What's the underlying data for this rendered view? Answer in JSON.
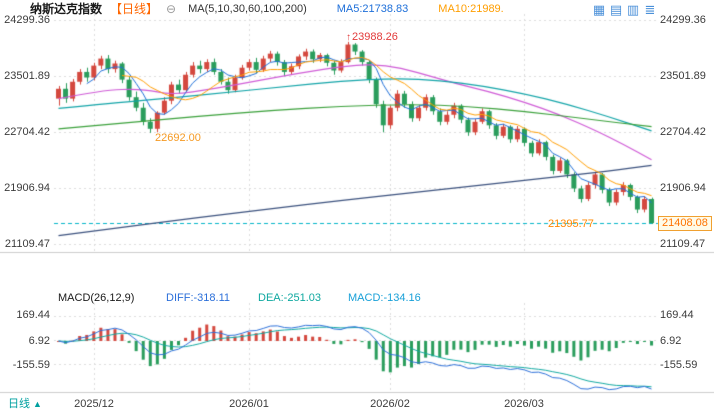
{
  "header": {
    "title": "纳斯达克指数",
    "period_tag": "【日线】",
    "ma_group_label": "MA(5,10,30,60,100,200)",
    "ma5_label": "MA5:21738.83",
    "ma10_label": "MA10:21989."
  },
  "icons": {
    "collapse": "⊖",
    "arrow_up": "↑",
    "tab_arrow": "▲",
    "toolbar": [
      {
        "name": "multi-chart-grid",
        "glyph": "▦"
      },
      {
        "name": "split-rows",
        "glyph": "▤"
      },
      {
        "name": "split-columns",
        "glyph": "▥"
      },
      {
        "name": "list-layout",
        "glyph": "≣"
      }
    ]
  },
  "price_axis": {
    "labels": [
      "24299.36",
      "23501.89",
      "22704.42",
      "21906.94",
      "21109.47"
    ]
  },
  "current_price_tag": "21408.08",
  "annotations": {
    "high": "23988.26",
    "period_low": "22692.00",
    "session_low": "21395.77"
  },
  "macd_header": {
    "label": "MACD(26,12,9)",
    "diff": "DIFF:-318.11",
    "dea": "DEA:-251.03",
    "macd": "MACD:-134.16"
  },
  "macd_axis": {
    "labels": [
      "169.44",
      "6.92",
      "-155.59"
    ]
  },
  "time_axis": {
    "labels": [
      "2025/12",
      "2026/01",
      "2026/02",
      "2026/03"
    ]
  },
  "bottom_tab": {
    "label": "日线"
  },
  "chart_data": {
    "type": "candlestick+macd",
    "title": "纳斯达克指数 日线",
    "y_axis_ticks": [
      24299.36,
      23501.89,
      22704.42,
      21906.94,
      21109.47
    ],
    "current_price": 21408.08,
    "marked_high": 23988.26,
    "marked_period_low": 22692.0,
    "marked_session_low": 21395.77,
    "ma_displayed": {
      "MA5": 21738.83,
      "MA10": 21989
    },
    "macd_values": {
      "diff": -318.11,
      "dea": -251.03,
      "macd": -134.16
    },
    "macd_axis_ticks": [
      169.44,
      6.92,
      -155.59
    ],
    "months": [
      {
        "label": "2025/12",
        "index": 5
      },
      {
        "label": "2026/01",
        "index": 27
      },
      {
        "label": "2026/02",
        "index": 47
      },
      {
        "label": "2026/03",
        "index": 66
      }
    ],
    "colors": {
      "up": "#d4483e",
      "down": "#2a9d5c",
      "ma5": "#1e6fd9",
      "ma10": "#ff9e00",
      "diff": "#2b6fd9",
      "dea": "#0fa8a0",
      "hist_pos": "#d4483e",
      "hist_neg": "#2a9d5c",
      "dashed": "#00b4c8",
      "grid": "#dcdcdc",
      "separator": "#cccccc"
    },
    "ma_long_lines": [
      {
        "name": "MA30",
        "color": "#cf5bd6",
        "points": [
          [
            0,
            23180
          ],
          [
            6,
            23300
          ],
          [
            12,
            23320
          ],
          [
            16,
            23230
          ],
          [
            22,
            23320
          ],
          [
            28,
            23430
          ],
          [
            34,
            23540
          ],
          [
            41,
            23650
          ],
          [
            46,
            23670
          ],
          [
            51,
            23550
          ],
          [
            56,
            23400
          ],
          [
            61,
            23280
          ],
          [
            66,
            23130
          ],
          [
            71,
            22950
          ],
          [
            76,
            22730
          ],
          [
            80,
            22530
          ],
          [
            84,
            22310
          ]
        ]
      },
      {
        "name": "MA60",
        "color": "#12a4a8",
        "points": [
          [
            0,
            23040
          ],
          [
            8,
            23120
          ],
          [
            16,
            23190
          ],
          [
            24,
            23270
          ],
          [
            32,
            23350
          ],
          [
            40,
            23430
          ],
          [
            48,
            23470
          ],
          [
            54,
            23440
          ],
          [
            60,
            23360
          ],
          [
            66,
            23250
          ],
          [
            72,
            23100
          ],
          [
            78,
            22920
          ],
          [
            84,
            22720
          ]
        ]
      },
      {
        "name": "MA100",
        "color": "#3aa03a",
        "points": [
          [
            0,
            22750
          ],
          [
            10,
            22840
          ],
          [
            20,
            22930
          ],
          [
            30,
            23010
          ],
          [
            40,
            23070
          ],
          [
            50,
            23100
          ],
          [
            58,
            23070
          ],
          [
            66,
            23000
          ],
          [
            74,
            22900
          ],
          [
            84,
            22780
          ]
        ]
      },
      {
        "name": "MA200",
        "color": "#3a507d",
        "points": [
          [
            0,
            21230
          ],
          [
            10,
            21360
          ],
          [
            20,
            21490
          ],
          [
            30,
            21610
          ],
          [
            40,
            21730
          ],
          [
            50,
            21840
          ],
          [
            60,
            21950
          ],
          [
            70,
            22060
          ],
          [
            78,
            22150
          ],
          [
            84,
            22230
          ]
        ]
      }
    ],
    "candles": [
      [
        23180,
        23360,
        23080,
        23320
      ],
      [
        23320,
        23400,
        23120,
        23180
      ],
      [
        23180,
        23460,
        23140,
        23420
      ],
      [
        23420,
        23600,
        23380,
        23560
      ],
      [
        23560,
        23620,
        23420,
        23480
      ],
      [
        23480,
        23690,
        23440,
        23650
      ],
      [
        23650,
        23790,
        23600,
        23750
      ],
      [
        23750,
        23800,
        23540,
        23600
      ],
      [
        23600,
        23720,
        23550,
        23680
      ],
      [
        23680,
        23700,
        23400,
        23450
      ],
      [
        23450,
        23500,
        23150,
        23200
      ],
      [
        23200,
        23280,
        23000,
        23050
      ],
      [
        23050,
        23120,
        22800,
        22850
      ],
      [
        22850,
        22900,
        22692,
        22750
      ],
      [
        22750,
        23000,
        22700,
        22980
      ],
      [
        22980,
        23200,
        22950,
        23150
      ],
      [
        23150,
        23420,
        23100,
        23380
      ],
      [
        23380,
        23450,
        23250,
        23300
      ],
      [
        23300,
        23560,
        23280,
        23520
      ],
      [
        23520,
        23700,
        23480,
        23650
      ],
      [
        23650,
        23720,
        23540,
        23600
      ],
      [
        23600,
        23740,
        23560,
        23700
      ],
      [
        23700,
        23750,
        23520,
        23560
      ],
      [
        23560,
        23600,
        23380,
        23420
      ],
      [
        23420,
        23480,
        23250,
        23300
      ],
      [
        23300,
        23520,
        23270,
        23480
      ],
      [
        23480,
        23660,
        23450,
        23620
      ],
      [
        23620,
        23740,
        23580,
        23700
      ],
      [
        23700,
        23760,
        23540,
        23590
      ],
      [
        23590,
        23790,
        23560,
        23750
      ],
      [
        23750,
        23860,
        23700,
        23820
      ],
      [
        23820,
        23850,
        23650,
        23700
      ],
      [
        23700,
        23730,
        23500,
        23560
      ],
      [
        23560,
        23680,
        23520,
        23640
      ],
      [
        23640,
        23810,
        23600,
        23780
      ],
      [
        23780,
        23890,
        23730,
        23850
      ],
      [
        23850,
        23880,
        23690,
        23740
      ],
      [
        23740,
        23830,
        23700,
        23800
      ],
      [
        23800,
        23820,
        23640,
        23690
      ],
      [
        23690,
        23720,
        23520,
        23580
      ],
      [
        23580,
        23740,
        23550,
        23700
      ],
      [
        23700,
        23988.26,
        23680,
        23950
      ],
      [
        23950,
        23970,
        23800,
        23850
      ],
      [
        23850,
        23870,
        23650,
        23700
      ],
      [
        23700,
        23720,
        23400,
        23450
      ],
      [
        23450,
        23480,
        23050,
        23100
      ],
      [
        23100,
        23150,
        22700,
        22800
      ],
      [
        22800,
        23080,
        22750,
        23050
      ],
      [
        23050,
        23300,
        23000,
        23250
      ],
      [
        23250,
        23290,
        23050,
        23100
      ],
      [
        23100,
        23140,
        22850,
        22900
      ],
      [
        22900,
        23090,
        22860,
        23050
      ],
      [
        23050,
        23240,
        23010,
        23200
      ],
      [
        23200,
        23230,
        22950,
        23000
      ],
      [
        23000,
        23040,
        22800,
        22850
      ],
      [
        22850,
        23000,
        22810,
        22950
      ],
      [
        22950,
        23120,
        22900,
        23080
      ],
      [
        23080,
        23100,
        22830,
        22880
      ],
      [
        22880,
        22910,
        22650,
        22700
      ],
      [
        22700,
        22890,
        22660,
        22850
      ],
      [
        22850,
        23040,
        22820,
        23000
      ],
      [
        23000,
        23020,
        22750,
        22800
      ],
      [
        22800,
        22830,
        22600,
        22650
      ],
      [
        22650,
        22820,
        22620,
        22780
      ],
      [
        22780,
        22800,
        22550,
        22600
      ],
      [
        22600,
        22790,
        22560,
        22750
      ],
      [
        22750,
        22770,
        22500,
        22550
      ],
      [
        22550,
        22580,
        22350,
        22400
      ],
      [
        22400,
        22600,
        22370,
        22560
      ],
      [
        22560,
        22580,
        22300,
        22350
      ],
      [
        22350,
        22380,
        22100,
        22150
      ],
      [
        22150,
        22340,
        22120,
        22300
      ],
      [
        22300,
        22320,
        22050,
        22100
      ],
      [
        22100,
        22130,
        21850,
        21900
      ],
      [
        21900,
        21940,
        21700,
        21750
      ],
      [
        21750,
        21990,
        21720,
        21950
      ],
      [
        21950,
        22140,
        21900,
        22100
      ],
      [
        22100,
        22120,
        21830,
        21880
      ],
      [
        21880,
        21910,
        21650,
        21700
      ],
      [
        21700,
        21890,
        21660,
        21850
      ],
      [
        21850,
        21990,
        21800,
        21950
      ],
      [
        21950,
        21970,
        21730,
        21780
      ],
      [
        21780,
        21800,
        21550,
        21600
      ],
      [
        21600,
        21790,
        21560,
        21750
      ],
      [
        21750,
        21770,
        21395.77,
        21408.08
      ]
    ]
  }
}
